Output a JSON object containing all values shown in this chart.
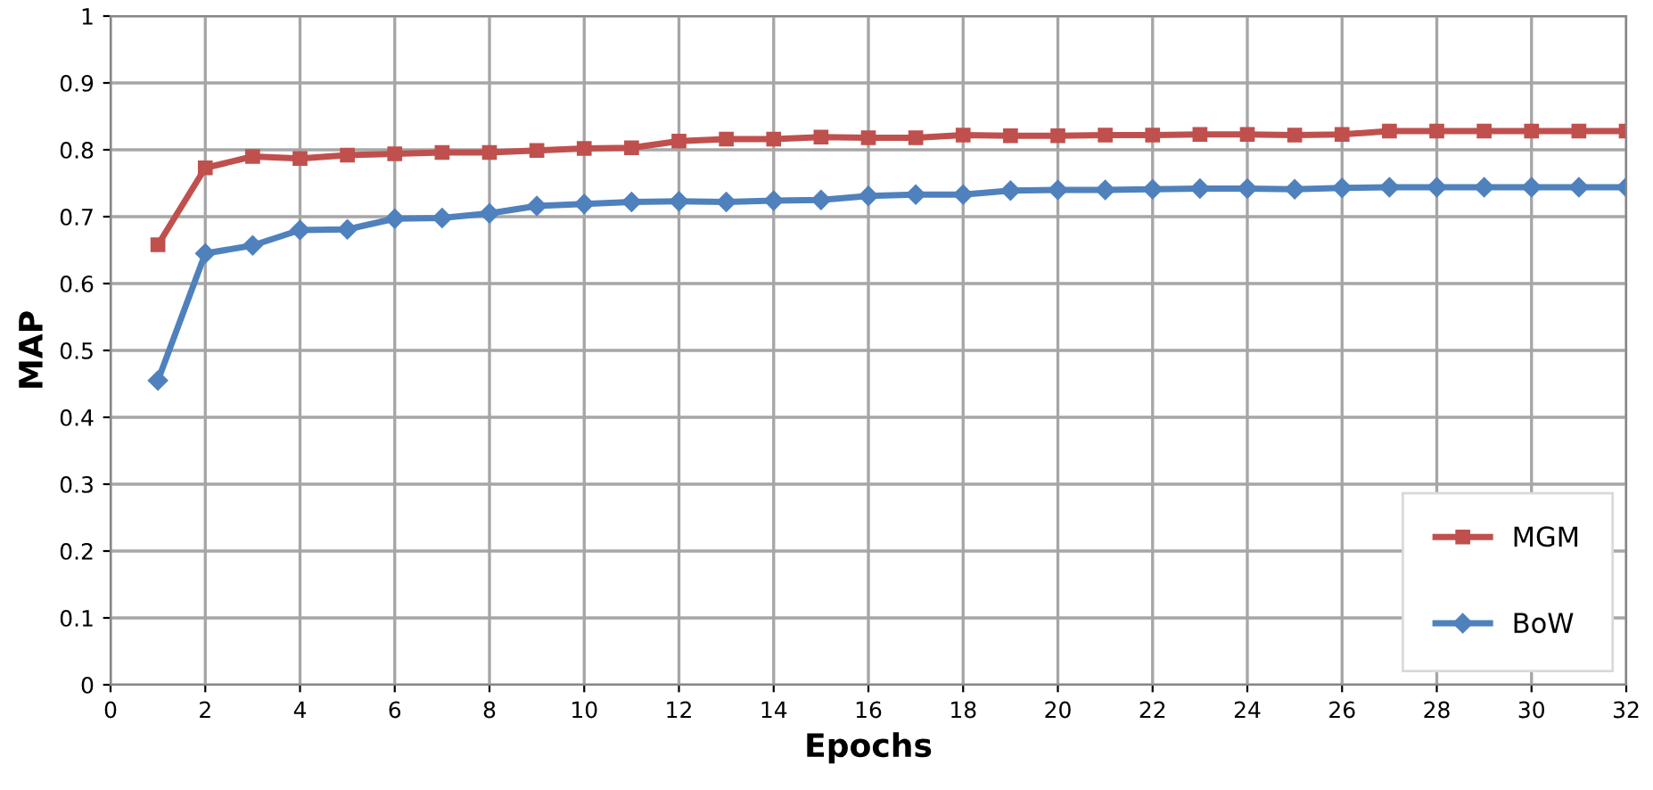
{
  "chart_data": {
    "type": "line",
    "xlabel": "Epochs",
    "ylabel": "MAP",
    "x": [
      1,
      2,
      3,
      4,
      5,
      6,
      7,
      8,
      9,
      10,
      11,
      12,
      13,
      14,
      15,
      16,
      17,
      18,
      19,
      20,
      21,
      22,
      23,
      24,
      25,
      26,
      27,
      28,
      29,
      30,
      31,
      32
    ],
    "series": [
      {
        "name": "MGM",
        "color": "#c0504d",
        "marker": "square",
        "values": [
          0.658,
          0.773,
          0.79,
          0.787,
          0.792,
          0.794,
          0.796,
          0.796,
          0.799,
          0.802,
          0.803,
          0.813,
          0.816,
          0.816,
          0.819,
          0.818,
          0.818,
          0.822,
          0.821,
          0.821,
          0.822,
          0.822,
          0.823,
          0.823,
          0.822,
          0.823,
          0.828,
          0.828,
          0.828,
          0.828,
          0.828,
          0.828
        ]
      },
      {
        "name": "BoW",
        "color": "#4f81bd",
        "marker": "diamond",
        "values": [
          0.455,
          0.645,
          0.657,
          0.68,
          0.681,
          0.697,
          0.698,
          0.705,
          0.716,
          0.719,
          0.722,
          0.723,
          0.722,
          0.724,
          0.725,
          0.731,
          0.733,
          0.733,
          0.739,
          0.74,
          0.74,
          0.741,
          0.742,
          0.742,
          0.741,
          0.743,
          0.744,
          0.744,
          0.744,
          0.744,
          0.744,
          0.744
        ]
      }
    ],
    "xlim": [
      0,
      32
    ],
    "xticks": [
      0,
      2,
      4,
      6,
      8,
      10,
      12,
      14,
      16,
      18,
      20,
      22,
      24,
      26,
      28,
      30,
      32
    ],
    "ylim": [
      0,
      1
    ],
    "yticks": [
      0,
      0.1,
      0.2,
      0.3,
      0.4,
      0.5,
      0.6,
      0.7,
      0.8,
      0.9,
      1
    ],
    "grid": true,
    "legend": "bottom right"
  }
}
